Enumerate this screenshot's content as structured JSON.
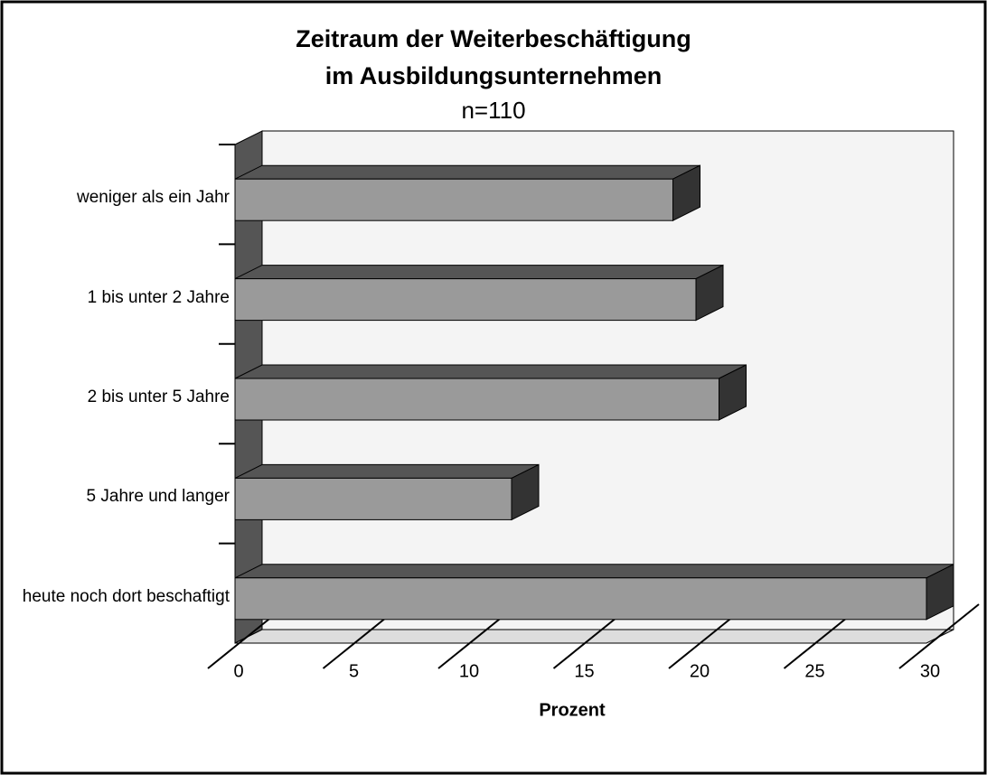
{
  "chart_data": {
    "type": "bar3d_horizontal",
    "title": [
      "Zeitraum der Weiterbeschäftigung",
      "im Ausbildungsunternehmen"
    ],
    "subtitle": "n=110",
    "categories": [
      "weniger als ein Jahr",
      "1  bis unter 2 Jahre",
      "2 bis unter 5 Jahre",
      "5 Jahre und langer",
      "heute noch dort beschaftigt"
    ],
    "values": [
      19,
      20,
      21,
      12,
      30
    ],
    "color": "#9a9a9a",
    "xlabel": "Prozent",
    "xlim": [
      0,
      30
    ],
    "xticks": [
      0,
      5,
      10,
      15,
      20,
      25,
      30
    ]
  }
}
